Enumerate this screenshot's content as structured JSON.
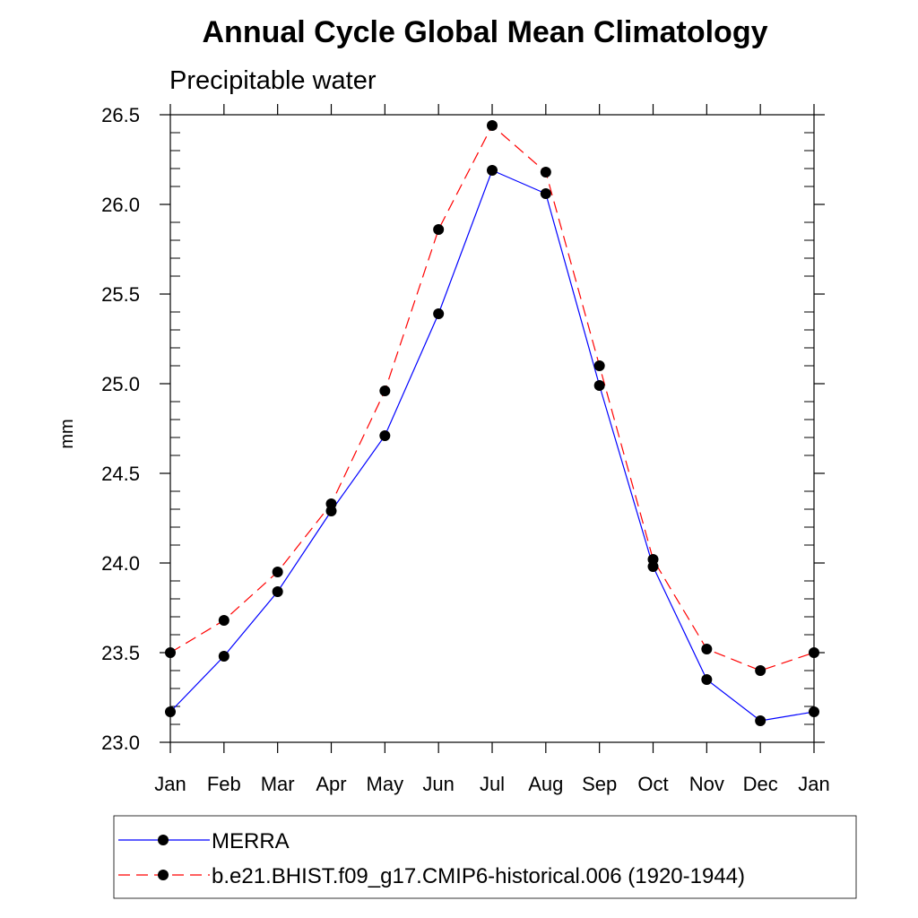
{
  "chart_data": {
    "type": "line",
    "title": "Annual Cycle Global Mean Climatology",
    "subtitle": "Precipitable water",
    "xlabel": "",
    "ylabel": "mm",
    "categories": [
      "Jan",
      "Feb",
      "Mar",
      "Apr",
      "May",
      "Jun",
      "Jul",
      "Aug",
      "Sep",
      "Oct",
      "Nov",
      "Dec",
      "Jan"
    ],
    "ylim": [
      23.0,
      26.5
    ],
    "yticks": [
      "23.0",
      "23.5",
      "24.0",
      "24.5",
      "25.0",
      "25.5",
      "26.0",
      "26.5"
    ],
    "ytick_values": [
      23.0,
      23.5,
      24.0,
      24.5,
      25.0,
      25.5,
      26.0,
      26.5
    ],
    "legend_position": "bottom",
    "series": [
      {
        "name": "MERRA",
        "color": "#0000ff",
        "line_style": "solid",
        "marker": "filled-circle",
        "values": [
          23.17,
          23.48,
          23.84,
          24.29,
          24.71,
          25.39,
          26.19,
          26.06,
          24.99,
          23.98,
          23.35,
          23.12,
          23.17
        ]
      },
      {
        "name": "b.e21.BHIST.f09_g17.CMIP6-historical.006 (1920-1944)",
        "color": "#ff0000",
        "line_style": "dashed",
        "marker": "filled-circle",
        "values": [
          23.5,
          23.68,
          23.95,
          24.33,
          24.96,
          25.86,
          26.44,
          26.18,
          25.1,
          24.02,
          23.52,
          23.4,
          23.5
        ]
      }
    ]
  }
}
